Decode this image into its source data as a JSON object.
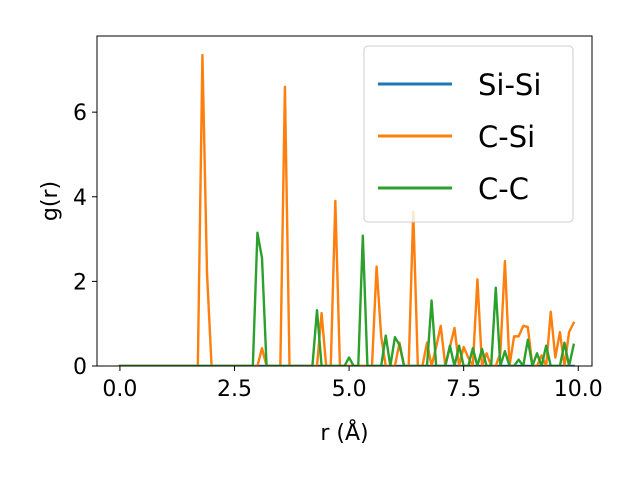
{
  "chart_data": {
    "type": "line",
    "xlabel": "r (Å)",
    "ylabel": "g(r)",
    "xlim": [
      -0.5,
      10.3
    ],
    "ylim": [
      0,
      7.8
    ],
    "xticks": [
      0.0,
      2.5,
      5.0,
      7.5,
      10.0
    ],
    "xtick_labels": [
      "0.0",
      "2.5",
      "5.0",
      "7.5",
      "10.0"
    ],
    "yticks": [
      0,
      2,
      4,
      6
    ],
    "ytick_labels": [
      "0",
      "2",
      "4",
      "6"
    ],
    "grid": false,
    "legend_position": "top-right",
    "series": [
      {
        "name": "Si-Si",
        "color": "#1f77b4",
        "x": [
          0.0,
          9.9
        ],
        "y": [
          0.0,
          0.0
        ]
      },
      {
        "name": "C-Si",
        "color": "#ff7f0e",
        "x": [
          0.0,
          1.7,
          1.8,
          1.9,
          2.0,
          2.1,
          3.0,
          3.1,
          3.2,
          3.5,
          3.6,
          3.7,
          3.8,
          4.2,
          4.3,
          4.4,
          4.5,
          4.6,
          4.7,
          4.8,
          5.2,
          5.3,
          5.4,
          5.5,
          5.6,
          5.7,
          5.8,
          5.9,
          6.0,
          6.1,
          6.2,
          6.3,
          6.4,
          6.5,
          6.6,
          6.7,
          6.8,
          6.9,
          7.0,
          7.1,
          7.2,
          7.3,
          7.4,
          7.5,
          7.6,
          7.7,
          7.8,
          7.9,
          8.0,
          8.1,
          8.2,
          8.3,
          8.4,
          8.5,
          8.6,
          8.7,
          8.8,
          8.9,
          9.0,
          9.1,
          9.2,
          9.3,
          9.4,
          9.5,
          9.6,
          9.7,
          9.8,
          9.9
        ],
        "y": [
          0.0,
          0.0,
          7.35,
          2.2,
          0.0,
          0.0,
          0.0,
          0.42,
          0.0,
          0.0,
          6.6,
          0.0,
          0.0,
          0.0,
          0.0,
          1.25,
          0.0,
          0.0,
          3.9,
          0.0,
          0.0,
          0.0,
          0.0,
          0.0,
          2.35,
          0.7,
          0.0,
          0.0,
          0.0,
          0.55,
          0.0,
          0.0,
          3.65,
          0.0,
          0.0,
          0.55,
          0.0,
          0.45,
          0.95,
          0.0,
          0.45,
          0.9,
          0.0,
          0.45,
          0.2,
          0.0,
          2.05,
          0.0,
          0.3,
          0.0,
          0.0,
          0.3,
          2.48,
          0.0,
          0.7,
          0.7,
          0.95,
          0.92,
          0.0,
          0.0,
          0.25,
          0.0,
          1.28,
          0.2,
          0.8,
          0.0,
          0.8,
          1.02
        ]
      },
      {
        "name": "C-C",
        "color": "#2ca02c",
        "x": [
          0.0,
          2.9,
          3.0,
          3.1,
          3.2,
          4.2,
          4.3,
          4.4,
          4.8,
          4.9,
          5.0,
          5.1,
          5.2,
          5.3,
          5.4,
          5.5,
          5.6,
          5.7,
          5.8,
          5.9,
          6.0,
          6.1,
          6.2,
          6.3,
          6.4,
          6.5,
          6.6,
          6.7,
          6.8,
          6.9,
          7.0,
          7.1,
          7.2,
          7.3,
          7.4,
          7.5,
          7.6,
          7.7,
          7.8,
          7.9,
          8.0,
          8.1,
          8.2,
          8.3,
          8.4,
          8.5,
          8.6,
          8.7,
          8.8,
          8.9,
          9.0,
          9.1,
          9.2,
          9.3,
          9.4,
          9.5,
          9.6,
          9.7,
          9.8,
          9.9
        ],
        "y": [
          0.0,
          0.0,
          3.15,
          2.55,
          0.0,
          0.0,
          1.32,
          0.0,
          0.0,
          0.0,
          0.2,
          0.0,
          0.0,
          3.08,
          0.0,
          0.0,
          0.0,
          0.0,
          0.72,
          0.0,
          0.68,
          0.5,
          0.0,
          0.0,
          0.0,
          0.0,
          0.0,
          0.0,
          1.55,
          0.0,
          0.0,
          0.0,
          0.48,
          0.0,
          0.48,
          0.0,
          0.0,
          0.42,
          0.0,
          0.4,
          0.0,
          0.0,
          1.85,
          0.0,
          0.35,
          0.0,
          0.0,
          0.15,
          0.0,
          0.62,
          0.0,
          0.3,
          0.0,
          0.48,
          0.0,
          0.0,
          0.0,
          0.55,
          0.0,
          0.5
        ]
      }
    ]
  }
}
